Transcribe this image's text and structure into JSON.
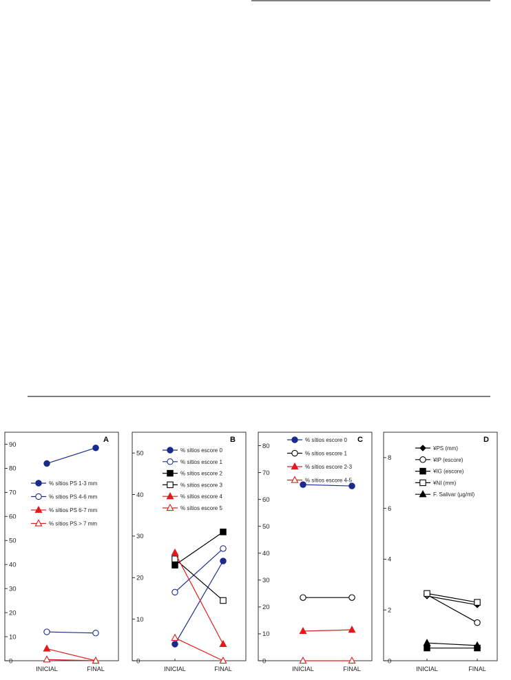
{
  "colors": {
    "blue": "#1a2a8a",
    "black": "#000000",
    "red": "#e31a1c"
  },
  "chart_data": [
    {
      "type": "line",
      "panel_letter": "A",
      "categories": [
        "INICIAL",
        "FINAL"
      ],
      "ylim": [
        0,
        95
      ],
      "yticks": [
        0,
        10,
        20,
        30,
        40,
        50,
        60,
        70,
        80,
        90
      ],
      "series": [
        {
          "name": "% sítios PS 1-3 mm",
          "values": [
            82,
            88.5
          ],
          "color": "blue",
          "marker": "circle",
          "filled": true
        },
        {
          "name": "% sítios PS 4-6 mm",
          "values": [
            12,
            11.5
          ],
          "color": "blue",
          "marker": "circle",
          "filled": false
        },
        {
          "name": "% sítios PS 6-7 mm",
          "values": [
            5,
            0
          ],
          "color": "red",
          "marker": "triangle",
          "filled": true
        },
        {
          "name": "% sítios PS > 7 mm",
          "values": [
            0.5,
            0
          ],
          "color": "red",
          "marker": "triangle",
          "filled": false
        }
      ]
    },
    {
      "type": "line",
      "panel_letter": "B",
      "categories": [
        "INICIAL",
        "FINAL"
      ],
      "ylim": [
        0,
        55
      ],
      "yticks": [
        0,
        10,
        20,
        30,
        40,
        50
      ],
      "series": [
        {
          "name": "% sítios escore 0",
          "values": [
            4,
            24
          ],
          "color": "blue",
          "marker": "circle",
          "filled": true
        },
        {
          "name": "% sítios escore 1",
          "values": [
            16.5,
            27
          ],
          "color": "blue",
          "marker": "circle",
          "filled": false
        },
        {
          "name": "% sítios escore 2",
          "values": [
            23,
            31
          ],
          "color": "black",
          "marker": "square",
          "filled": true
        },
        {
          "name": "% sítios escore 3",
          "values": [
            24.5,
            14.5
          ],
          "color": "black",
          "marker": "square",
          "filled": false
        },
        {
          "name": "% sítios escore 4",
          "values": [
            26,
            4
          ],
          "color": "red",
          "marker": "triangle",
          "filled": true
        },
        {
          "name": "% sítios escore 5",
          "values": [
            5.5,
            0
          ],
          "color": "red",
          "marker": "triangle",
          "filled": false
        }
      ]
    },
    {
      "type": "line",
      "panel_letter": "C",
      "categories": [
        "INICIAL",
        "FINAL"
      ],
      "ylim": [
        0,
        85
      ],
      "yticks": [
        0,
        10,
        20,
        30,
        40,
        50,
        60,
        70,
        80
      ],
      "series": [
        {
          "name": "% sítios escore 0",
          "values": [
            65.5,
            65
          ],
          "color": "blue",
          "marker": "circle",
          "filled": true
        },
        {
          "name": "% sítios escore 1",
          "values": [
            23.5,
            23.5
          ],
          "color": "black",
          "marker": "circle",
          "filled": false
        },
        {
          "name": "% sítios escore 2-3",
          "values": [
            11,
            11.5
          ],
          "color": "red",
          "marker": "triangle",
          "filled": true
        },
        {
          "name": "% sítios escore 4-5",
          "values": [
            0,
            0
          ],
          "color": "red",
          "marker": "triangle",
          "filled": false
        }
      ]
    },
    {
      "type": "line",
      "panel_letter": "D",
      "categories": [
        "INICIAL",
        "FINAL"
      ],
      "ylim": [
        0,
        9
      ],
      "yticks": [
        0,
        2,
        4,
        6,
        8
      ],
      "series": [
        {
          "name": "¥PS (mm)",
          "values": [
            2.55,
            2.2
          ],
          "color": "black",
          "marker": "diamond",
          "filled": true
        },
        {
          "name": "¥IP (escore)",
          "values": [
            2.6,
            1.5
          ],
          "color": "black",
          "marker": "circle",
          "filled": false
        },
        {
          "name": "¥IG (escore)",
          "values": [
            0.5,
            0.5
          ],
          "color": "black",
          "marker": "square",
          "filled": true
        },
        {
          "name": "¥NI (mm)",
          "values": [
            2.65,
            2.3
          ],
          "color": "black",
          "marker": "square",
          "filled": false
        },
        {
          "name": "F. Salivar (µg/ml)",
          "values": [
            0.7,
            0.6
          ],
          "color": "black",
          "marker": "triangle",
          "filled": true
        }
      ]
    }
  ]
}
